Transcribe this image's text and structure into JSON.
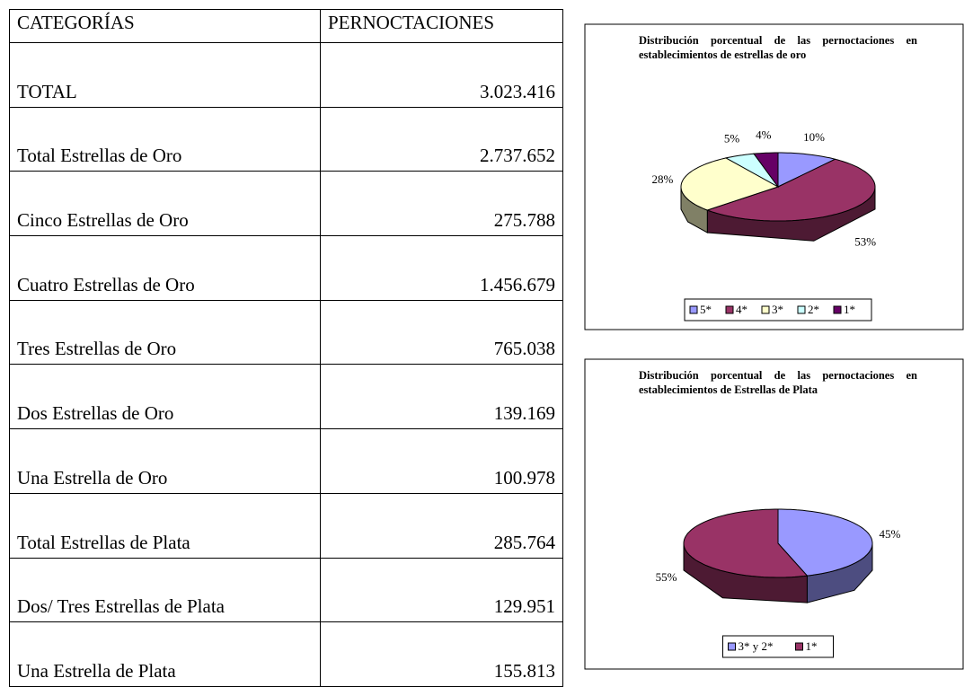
{
  "table": {
    "header": [
      "CATEGORÍAS",
      "PERNOCTACIONES"
    ],
    "rows": [
      [
        "TOTAL",
        "3.023.416"
      ],
      [
        "Total Estrellas de Oro",
        "2.737.652"
      ],
      [
        "Cinco Estrellas de Oro",
        "275.788"
      ],
      [
        "Cuatro Estrellas de Oro",
        "1.456.679"
      ],
      [
        "Tres Estrellas de Oro",
        "765.038"
      ],
      [
        "Dos Estrellas de Oro",
        "139.169"
      ],
      [
        "Una Estrella de Oro",
        "100.978"
      ],
      [
        "Total Estrellas de Plata",
        "285.764"
      ],
      [
        "Dos/ Tres Estrellas de Plata",
        "129.951"
      ],
      [
        "Una Estrella de Plata",
        "155.813"
      ]
    ]
  },
  "chart_data": [
    {
      "type": "pie",
      "title": "Distribución porcentual de las pernoctaciones en establecimientos de estrellas de oro",
      "categories": [
        "5*",
        "4*",
        "3*",
        "2*",
        "1*"
      ],
      "values": [
        10,
        53,
        28,
        5,
        4
      ],
      "value_labels": [
        "10%",
        "53%",
        "28%",
        "5%",
        "4%"
      ],
      "colors": [
        "#9999ff",
        "#993366",
        "#ffffcc",
        "#ccffff",
        "#660066"
      ],
      "legend": "bottom"
    },
    {
      "type": "pie",
      "title": "Distribución porcentual de las pernoctaciones en establecimientos de Estrellas de Plata",
      "categories": [
        "3* y 2*",
        "1*"
      ],
      "values": [
        45,
        55
      ],
      "value_labels": [
        "45%",
        "55%"
      ],
      "colors": [
        "#9999ff",
        "#993366"
      ],
      "legend": "bottom"
    }
  ]
}
